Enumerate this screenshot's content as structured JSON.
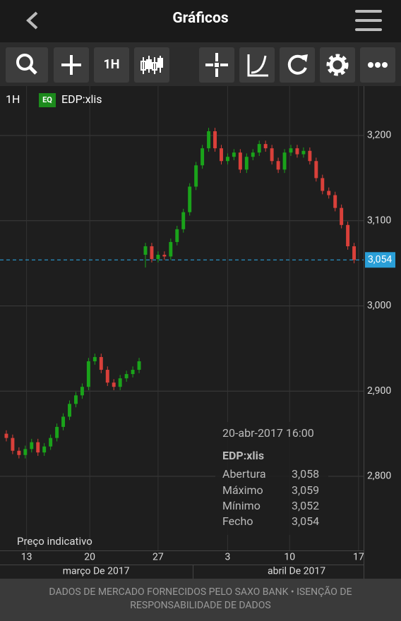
{
  "header": {
    "title": "Gráficos"
  },
  "toolbar": {
    "interval": "1H"
  },
  "chart_header": {
    "interval": "1H",
    "badge": "EQ",
    "instrument": "EDP:xlis"
  },
  "chart_data": {
    "type": "candlestick",
    "x": [
      0,
      1,
      2,
      3,
      4,
      5,
      6,
      7,
      8,
      9,
      10,
      11,
      12,
      13,
      14,
      15,
      16,
      17,
      18,
      19,
      20,
      21,
      22,
      23,
      24,
      25,
      26,
      27,
      28,
      29,
      30,
      31,
      32,
      33,
      34,
      35,
      36,
      37,
      38,
      39,
      40,
      41,
      42,
      43,
      44,
      45,
      46,
      47,
      48,
      49,
      50,
      51,
      52,
      53,
      54,
      55
    ],
    "open": [
      2850,
      2845,
      2830,
      2825,
      2832,
      2840,
      2828,
      2835,
      2845,
      2858,
      2870,
      2885,
      2895,
      2905,
      2935,
      2940,
      2925,
      2910,
      2905,
      2915,
      2920,
      2925,
      3060,
      3070,
      3055,
      3060,
      3058,
      3075,
      3090,
      3110,
      3140,
      3165,
      3185,
      3205,
      3185,
      3170,
      3175,
      3180,
      3160,
      3175,
      3180,
      3190,
      3185,
      3170,
      3160,
      3180,
      3185,
      3178,
      3182,
      3170,
      3150,
      3135,
      3130,
      3115,
      3095,
      3070
    ],
    "high": [
      2854,
      2849,
      2834,
      2836,
      2844,
      2844,
      2839,
      2849,
      2862,
      2874,
      2889,
      2899,
      2909,
      2939,
      2944,
      2944,
      2929,
      2914,
      2919,
      2924,
      2929,
      2939,
      3074,
      3074,
      3064,
      3064,
      3079,
      3094,
      3114,
      3144,
      3169,
      3189,
      3209,
      3209,
      3189,
      3179,
      3184,
      3184,
      3179,
      3184,
      3194,
      3194,
      3189,
      3174,
      3184,
      3189,
      3189,
      3186,
      3186,
      3174,
      3154,
      3139,
      3134,
      3119,
      3099,
      3074
    ],
    "low": [
      2841,
      2826,
      2821,
      2821,
      2828,
      2824,
      2824,
      2831,
      2841,
      2854,
      2866,
      2881,
      2891,
      2901,
      2931,
      2921,
      2906,
      2901,
      2901,
      2911,
      2916,
      2921,
      3045,
      3051,
      3051,
      3054,
      3054,
      3071,
      3086,
      3106,
      3136,
      3161,
      3181,
      3181,
      3166,
      3166,
      3171,
      3156,
      3156,
      3171,
      3176,
      3181,
      3166,
      3156,
      3156,
      3176,
      3174,
      3174,
      3166,
      3146,
      3131,
      3126,
      3111,
      3091,
      3066,
      3050
    ],
    "close": [
      2845,
      2830,
      2825,
      2832,
      2840,
      2828,
      2835,
      2845,
      2858,
      2870,
      2885,
      2895,
      2905,
      2935,
      2940,
      2925,
      2910,
      2905,
      2915,
      2920,
      2925,
      2935,
      3070,
      3055,
      3060,
      3058,
      3075,
      3090,
      3110,
      3140,
      3165,
      3185,
      3205,
      3185,
      3170,
      3175,
      3180,
      3160,
      3175,
      3180,
      3190,
      3185,
      3170,
      3160,
      3180,
      3185,
      3178,
      3182,
      3170,
      3150,
      3135,
      3130,
      3115,
      3095,
      3070,
      3054
    ],
    "up_color": "#1aa31a",
    "down_color": "#d9403a",
    "xlim": [
      -1,
      56.5
    ],
    "ylim": [
      2713,
      3258
    ],
    "yticks": [
      {
        "value": 2800,
        "label": "2,800"
      },
      {
        "value": 2900,
        "label": "2,900"
      },
      {
        "value": 3000,
        "label": "3,000"
      },
      {
        "value": 3100,
        "label": "3,100"
      },
      {
        "value": 3200,
        "label": "3,200"
      }
    ],
    "xticks": [
      {
        "value": 3.2,
        "label": "13"
      },
      {
        "value": 13.2,
        "label": "20"
      },
      {
        "value": 24,
        "label": "27"
      },
      {
        "value": 35,
        "label": "3"
      },
      {
        "value": 44.8,
        "label": "10"
      },
      {
        "value": 55.7,
        "label": "17"
      }
    ],
    "secondary_xticks": [
      {
        "value": 14.2,
        "label": "março De 2017"
      },
      {
        "value": 45.9,
        "label": "abril De 2017"
      }
    ],
    "last_price": {
      "value": 3054,
      "label": "3,054",
      "color": "#2a9fd8"
    },
    "grid": true
  },
  "note": "Preço indicativo",
  "tooltip": {
    "time": "20-abr-2017 16:00",
    "instrument": "EDP:xlis",
    "rows": [
      [
        "Abertura",
        "3,058"
      ],
      [
        "Máximo",
        "3,059"
      ],
      [
        "Mínimo",
        "3,052"
      ],
      [
        "Fecho",
        "3,054"
      ]
    ]
  },
  "footer": "DADOS DE MERCADO FORNECIDOS PELO SAXO BANK • ISENÇÃO DE RESPONSABILIDADE DE DADOS"
}
